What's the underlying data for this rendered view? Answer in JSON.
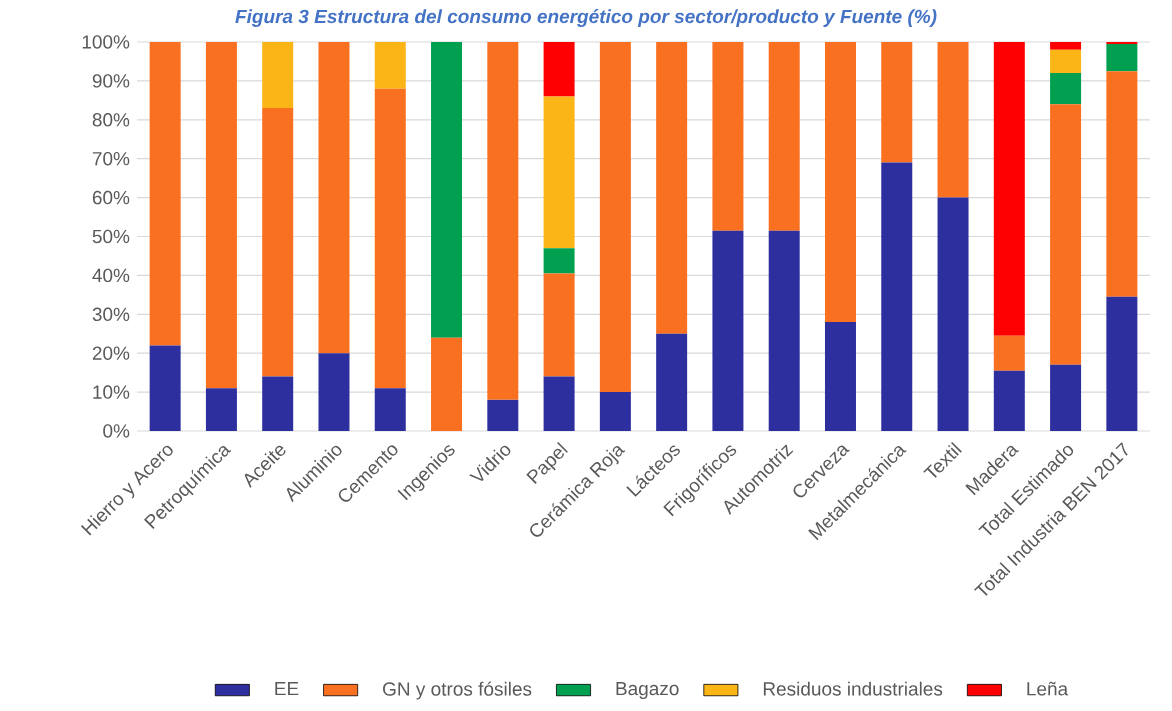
{
  "chart_data": {
    "type": "bar",
    "stacked": true,
    "title": "Figura 3 Estructura del consumo energético por sector/producto y Fuente (%)",
    "categories": [
      "Hierro y Acero",
      "Petroquímica",
      "Aceite",
      "Aluminio",
      "Cemento",
      "Ingenios",
      "Vidrio",
      "Papel",
      "Cerámica Roja",
      "Lácteos",
      "Frigoríficos",
      "Automotriz",
      "Cerveza",
      "Metalmecánica",
      "Textil",
      "Madera",
      "Total Estimado",
      "Total Industria BEN 2017"
    ],
    "series": [
      {
        "name": "EE",
        "color": "#2e2f9f",
        "values": [
          22,
          11,
          14,
          20,
          11,
          0,
          8,
          14,
          10,
          25,
          51.5,
          51.5,
          28,
          69,
          60,
          15.5,
          17,
          34.5
        ]
      },
      {
        "name": "GN y otros fósiles",
        "color": "#f97020",
        "values": [
          78,
          89,
          69,
          80,
          77,
          24,
          92,
          26.5,
          90,
          75,
          48.5,
          48.5,
          72,
          31,
          40,
          9,
          67,
          58
        ]
      },
      {
        "name": "Bagazo",
        "color": "#00a050",
        "values": [
          0,
          0,
          0,
          0,
          0,
          76,
          0,
          6.5,
          0,
          0,
          0,
          0,
          0,
          0,
          0,
          0,
          8,
          7
        ]
      },
      {
        "name": "Residuos industriales",
        "color": "#fbb516",
        "values": [
          0,
          0,
          17,
          0,
          12,
          0,
          0,
          39,
          0,
          0,
          0,
          0,
          0,
          0,
          0,
          0,
          6,
          0
        ]
      },
      {
        "name": "Leña",
        "color": "#ff0000",
        "values": [
          0,
          0,
          0,
          0,
          0,
          0,
          0,
          14,
          0,
          0,
          0,
          0,
          0,
          0,
          0,
          75.5,
          2,
          0.5
        ]
      }
    ],
    "ylim": [
      0,
      100
    ],
    "yticks": [
      {
        "value": 0,
        "label": "0%"
      },
      {
        "value": 10,
        "label": "10%"
      },
      {
        "value": 20,
        "label": "20%"
      },
      {
        "value": 30,
        "label": "30%"
      },
      {
        "value": 40,
        "label": "40%"
      },
      {
        "value": 50,
        "label": "50%"
      },
      {
        "value": 60,
        "label": "60%"
      },
      {
        "value": 70,
        "label": "70%"
      },
      {
        "value": 80,
        "label": "80%"
      },
      {
        "value": 90,
        "label": "90%"
      },
      {
        "value": 100,
        "label": "100%"
      }
    ],
    "grid": "y",
    "legend": "bottom"
  }
}
